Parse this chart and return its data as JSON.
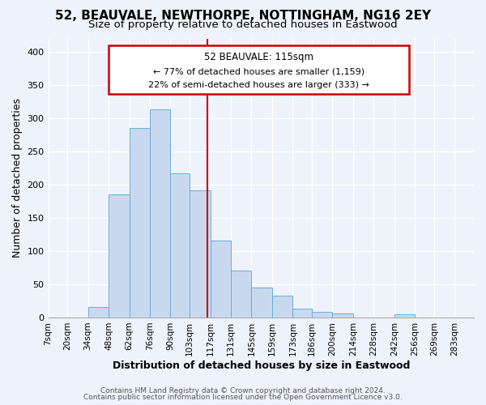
{
  "title": "52, BEAUVALE, NEWTHORPE, NOTTINGHAM, NG16 2EY",
  "subtitle": "Size of property relative to detached houses in Eastwood",
  "xlabel": "Distribution of detached houses by size in Eastwood",
  "ylabel": "Number of detached properties",
  "footnote1": "Contains HM Land Registry data © Crown copyright and database right 2024.",
  "footnote2": "Contains public sector information licensed under the Open Government Licence v3.0.",
  "bar_left_edges": [
    7,
    20,
    34,
    48,
    62,
    76,
    90,
    103,
    117,
    131,
    145,
    159,
    173,
    186,
    200,
    214,
    228,
    242,
    256,
    269
  ],
  "bar_heights": [
    0,
    0,
    16,
    185,
    285,
    313,
    217,
    191,
    116,
    71,
    45,
    33,
    13,
    8,
    6,
    0,
    0,
    5,
    0,
    0
  ],
  "bar_widths": [
    13,
    14,
    14,
    14,
    14,
    14,
    13,
    14,
    14,
    14,
    14,
    14,
    13,
    14,
    14,
    14,
    14,
    14,
    13,
    14
  ],
  "bar_color": "#c8d9ef",
  "bar_edge_color": "#6baed6",
  "tick_labels": [
    "7sqm",
    "20sqm",
    "34sqm",
    "48sqm",
    "62sqm",
    "76sqm",
    "90sqm",
    "103sqm",
    "117sqm",
    "131sqm",
    "145sqm",
    "159sqm",
    "173sqm",
    "186sqm",
    "200sqm",
    "214sqm",
    "228sqm",
    "242sqm",
    "256sqm",
    "269sqm",
    "283sqm"
  ],
  "tick_positions": [
    7,
    20,
    34,
    48,
    62,
    76,
    90,
    103,
    117,
    131,
    145,
    159,
    173,
    186,
    200,
    214,
    228,
    242,
    256,
    269,
    283
  ],
  "xlim": [
    7,
    296
  ],
  "ylim": [
    0,
    420
  ],
  "yticks": [
    0,
    50,
    100,
    150,
    200,
    250,
    300,
    350,
    400
  ],
  "property_line_x": 115,
  "property_line_color": "#cc0000",
  "ann_line1": "52 BEAUVALE: 115sqm",
  "ann_line2": "← 77% of detached houses are smaller (1,159)",
  "ann_line3": "22% of semi-detached houses are larger (333) →",
  "bg_color": "#eef2fb",
  "plot_bg_color": "#eef2fb",
  "grid_color": "#ffffff",
  "title_fontsize": 11,
  "subtitle_fontsize": 9.5,
  "xlabel_fontsize": 9,
  "ylabel_fontsize": 9,
  "tick_fontsize": 7.5,
  "ytick_fontsize": 8,
  "footnote_fontsize": 6.5
}
